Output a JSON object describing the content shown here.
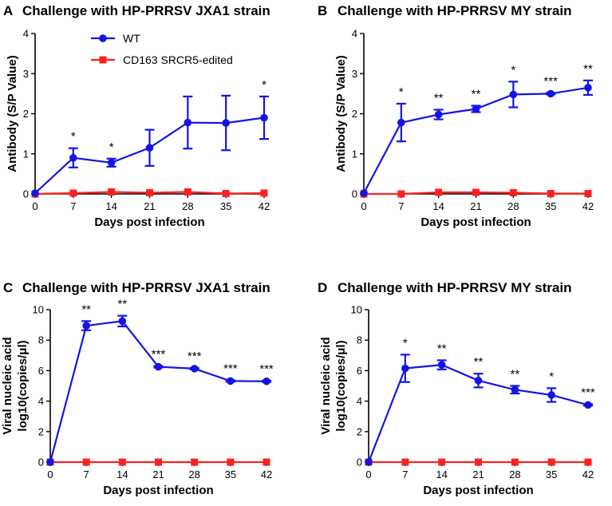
{
  "legend": [
    {
      "name": "WT",
      "color": "#1414e6",
      "marker": "circle"
    },
    {
      "name": "CD163 SRCR5-edited",
      "color": "#ff2020",
      "marker": "square"
    }
  ],
  "chart_data": [
    {
      "panel": "A",
      "type": "line",
      "title": "Challenge with HP-PRRSV JXA1 strain",
      "xlabel": "Days post infection",
      "ylabel": "Antibody (S/P Value)",
      "x": [
        0,
        7,
        14,
        21,
        28,
        35,
        42
      ],
      "xticks": [
        "0",
        "7",
        "14",
        "21",
        "28",
        "35",
        "42"
      ],
      "yticks": [
        "0",
        "1",
        "2",
        "3",
        "4"
      ],
      "xlim": [
        0,
        42
      ],
      "ylim": [
        0,
        4
      ],
      "series": [
        {
          "name": "WT",
          "values": [
            0.02,
            0.9,
            0.78,
            1.15,
            1.78,
            1.77,
            1.9
          ],
          "errors": [
            0,
            0.24,
            0.1,
            0.45,
            0.65,
            0.68,
            0.53
          ]
        },
        {
          "name": "CD163 SRCR5-edited",
          "values": [
            0,
            0.02,
            0.05,
            0.03,
            0.05,
            0.01,
            0.02
          ],
          "errors": [
            0,
            0,
            0,
            0,
            0,
            0,
            0
          ]
        }
      ],
      "significance": [
        "",
        "*",
        "*",
        "",
        "",
        "",
        "*"
      ]
    },
    {
      "panel": "B",
      "type": "line",
      "title": "Challenge with HP-PRRSV MY strain",
      "xlabel": "Days post infection",
      "ylabel": "Antibody (S/P Value)",
      "x": [
        0,
        7,
        14,
        21,
        28,
        35,
        42
      ],
      "xticks": [
        "0",
        "7",
        "14",
        "21",
        "28",
        "35",
        "42"
      ],
      "yticks": [
        "0",
        "1",
        "2",
        "3",
        "4"
      ],
      "xlim": [
        0,
        42
      ],
      "ylim": [
        0,
        4
      ],
      "series": [
        {
          "name": "WT",
          "values": [
            0.02,
            1.78,
            1.98,
            2.12,
            2.48,
            2.5,
            2.65
          ],
          "errors": [
            0,
            0.47,
            0.12,
            0.08,
            0.32,
            0.02,
            0.18
          ]
        },
        {
          "name": "CD163 SRCR5-edited",
          "values": [
            0,
            0,
            0.04,
            0.04,
            0.03,
            0.01,
            0.01
          ],
          "errors": [
            0,
            0,
            0,
            0,
            0,
            0,
            0
          ]
        }
      ],
      "significance": [
        "",
        "*",
        "**",
        "**",
        "*",
        "***",
        "**"
      ]
    },
    {
      "panel": "C",
      "type": "line",
      "title": "Challenge with HP-PRRSV JXA1 strain",
      "xlabel": "Days post infection",
      "ylabel_lines": [
        "Viral nucleic acid",
        "log10(copies/μl)"
      ],
      "x": [
        0,
        7,
        14,
        21,
        28,
        35,
        42
      ],
      "xticks": [
        "0",
        "7",
        "14",
        "21",
        "28",
        "35",
        "42"
      ],
      "yticks": [
        "0",
        "2",
        "4",
        "6",
        "8",
        "10"
      ],
      "xlim": [
        0,
        42
      ],
      "ylim": [
        0,
        10
      ],
      "series": [
        {
          "name": "WT",
          "values": [
            0,
            8.95,
            9.25,
            6.25,
            6.13,
            5.32,
            5.3
          ],
          "errors": [
            0,
            0.3,
            0.35,
            0.05,
            0.05,
            0.05,
            0.04
          ]
        },
        {
          "name": "CD163 SRCR5-edited",
          "values": [
            0,
            0,
            0,
            0,
            0,
            0,
            0
          ],
          "errors": [
            0,
            0,
            0,
            0,
            0,
            0,
            0
          ]
        }
      ],
      "significance": [
        "",
        "**",
        "**",
        "***",
        "***",
        "***",
        "***"
      ]
    },
    {
      "panel": "D",
      "type": "line",
      "title": "Challenge with HP-PRRSV MY strain",
      "xlabel": "Days post infection",
      "ylabel_lines": [
        "Viral nucleic acid",
        "log10(copies/μl)"
      ],
      "x": [
        0,
        7,
        14,
        21,
        28,
        35,
        42
      ],
      "xticks": [
        "0",
        "7",
        "14",
        "21",
        "28",
        "35",
        "42"
      ],
      "yticks": [
        "0",
        "2",
        "4",
        "6",
        "8",
        "10"
      ],
      "xlim": [
        0,
        42
      ],
      "ylim": [
        0,
        10
      ],
      "series": [
        {
          "name": "WT",
          "values": [
            0,
            6.15,
            6.38,
            5.35,
            4.75,
            4.4,
            3.75
          ],
          "errors": [
            0,
            0.9,
            0.3,
            0.45,
            0.25,
            0.45,
            0.05
          ]
        },
        {
          "name": "CD163 SRCR5-edited",
          "values": [
            0,
            0,
            0,
            0,
            0,
            0,
            0
          ],
          "errors": [
            0,
            0,
            0,
            0,
            0,
            0,
            0
          ]
        }
      ],
      "significance": [
        "",
        "*",
        "**",
        "**",
        "**",
        "*",
        "***"
      ]
    }
  ]
}
